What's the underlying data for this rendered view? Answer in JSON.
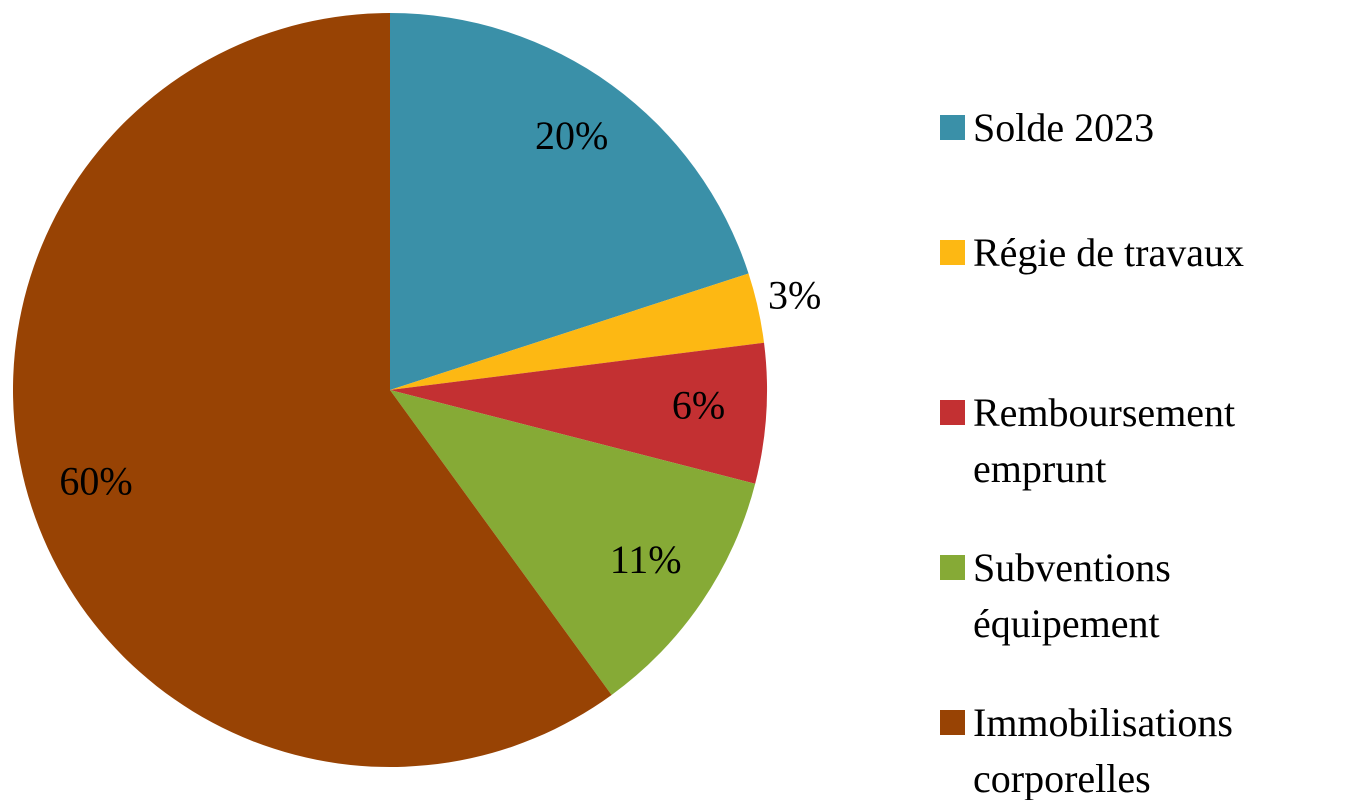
{
  "chart_data": {
    "type": "pie",
    "categories": [
      "Solde 2023",
      "Régie de travaux",
      "Remboursement emprunt",
      "Subventions équipement",
      "Immobilisations corporelles"
    ],
    "values": [
      20,
      3,
      6,
      11,
      60
    ],
    "value_labels": [
      "20%",
      "3%",
      "6%",
      "11%",
      "60%"
    ],
    "colors": [
      "#3a90a8",
      "#fdb813",
      "#c33032",
      "#86aa36",
      "#984304"
    ],
    "legend": "right"
  }
}
